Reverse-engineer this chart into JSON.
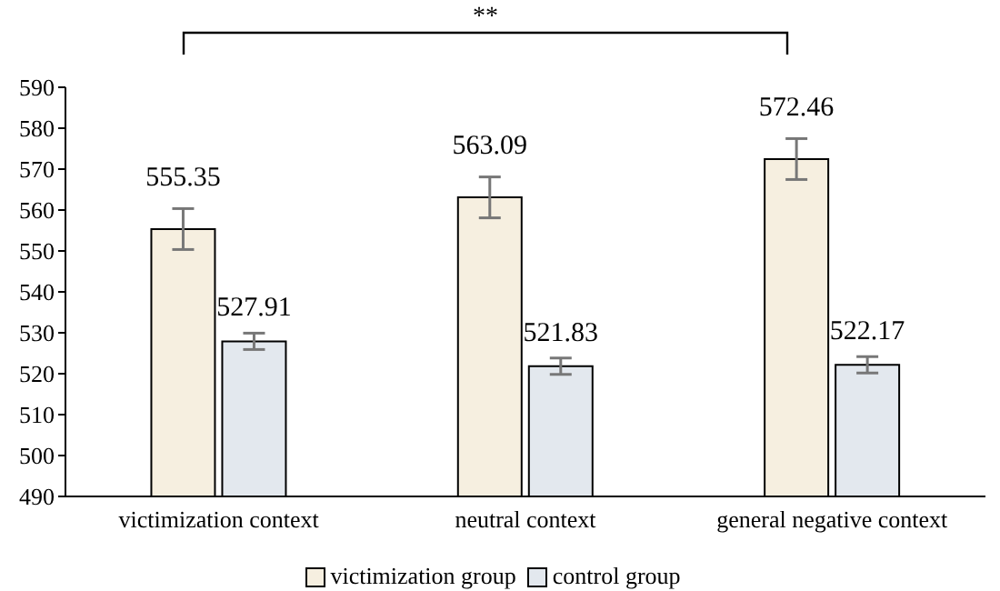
{
  "chart_data": {
    "type": "bar",
    "categories": [
      "victimization context",
      "neutral context",
      "general negative context"
    ],
    "series": [
      {
        "name": "victimization group",
        "color": "#f6efe0",
        "values": [
          555.35,
          563.09,
          572.46
        ],
        "errors": [
          5,
          5,
          5
        ]
      },
      {
        "name": "control group",
        "color": "#e3e8ee",
        "values": [
          527.91,
          521.83,
          522.17
        ],
        "errors": [
          2,
          2,
          2
        ]
      }
    ],
    "ylim": [
      490,
      590
    ],
    "yticks": [
      490,
      500,
      510,
      520,
      530,
      540,
      550,
      560,
      570,
      580,
      590
    ],
    "data_labels": true,
    "grid": false,
    "legend": "bottom",
    "annotations": [
      "**"
    ]
  }
}
